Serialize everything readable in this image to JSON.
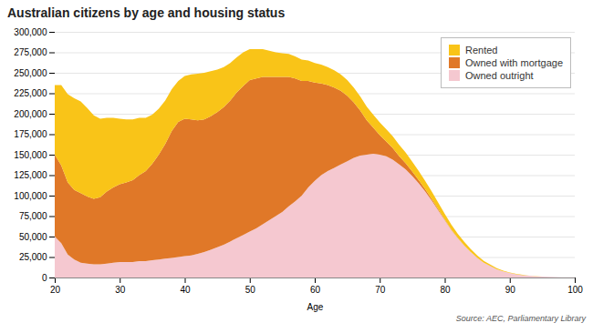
{
  "chart_data": {
    "type": "area",
    "stacked": true,
    "title": "Australian citizens by age and housing status",
    "xlabel": "Age",
    "annotations": [
      "Source: AEC, Parliamentary Library"
    ],
    "grid": true,
    "legend": "upper right",
    "xlim": [
      20,
      100
    ],
    "xticks": [
      20,
      30,
      40,
      50,
      60,
      70,
      80,
      90,
      100
    ],
    "ylim": [
      0,
      300000
    ],
    "yticks": [
      0,
      {
        "value": 25000,
        "label": "25,000"
      },
      {
        "value": 50000,
        "label": "50,000"
      },
      {
        "value": 75000,
        "label": "75,000"
      },
      {
        "value": 100000,
        "label": "100,000"
      },
      {
        "value": 125000,
        "label": "125,000"
      },
      {
        "value": 150000,
        "label": "150,000"
      },
      {
        "value": 175000,
        "label": "175,000"
      },
      {
        "value": 200000,
        "label": "200,000"
      },
      {
        "value": 225000,
        "label": "225,000"
      },
      {
        "value": 250000,
        "label": "250,000"
      },
      {
        "value": 275000,
        "label": "275,000"
      },
      {
        "value": 300000,
        "label": "300,000"
      }
    ],
    "x": [
      20,
      21,
      22,
      23,
      24,
      25,
      26,
      27,
      28,
      29,
      30,
      31,
      32,
      33,
      34,
      35,
      36,
      37,
      38,
      39,
      40,
      41,
      42,
      43,
      44,
      45,
      46,
      47,
      48,
      49,
      50,
      51,
      52,
      53,
      54,
      55,
      56,
      57,
      58,
      59,
      60,
      61,
      62,
      63,
      64,
      65,
      66,
      67,
      68,
      69,
      70,
      71,
      72,
      73,
      74,
      75,
      76,
      77,
      78,
      79,
      80,
      81,
      82,
      83,
      84,
      85,
      86,
      87,
      88,
      89,
      90,
      91,
      92,
      93,
      94,
      95,
      96,
      97,
      98,
      99,
      100
    ],
    "series": [
      {
        "name": "Owned outright",
        "color": "#F5C8D0",
        "values": [
          50000,
          42000,
          28000,
          22000,
          18000,
          17000,
          16000,
          16000,
          17000,
          18000,
          19000,
          19000,
          19000,
          20000,
          20000,
          21000,
          22000,
          23000,
          24000,
          25000,
          26000,
          27000,
          29000,
          31000,
          34000,
          37000,
          40000,
          44000,
          48000,
          52000,
          56000,
          60000,
          65000,
          70000,
          75000,
          80000,
          87000,
          93000,
          100000,
          110000,
          118000,
          125000,
          130000,
          134000,
          138000,
          142000,
          146000,
          149000,
          150000,
          151000,
          150000,
          148000,
          144000,
          138000,
          132000,
          124000,
          115000,
          105000,
          94000,
          82000,
          70000,
          58000,
          48000,
          39000,
          31000,
          24000,
          18000,
          14000,
          10000,
          7500,
          5500,
          4000,
          2900,
          2100,
          1500,
          1050,
          720,
          490,
          330,
          220,
          140
        ]
      },
      {
        "name": "Owned with mortgage",
        "color": "#E07828",
        "values": [
          100000,
          95000,
          88000,
          85000,
          85000,
          82000,
          80000,
          82000,
          88000,
          92000,
          95000,
          97000,
          100000,
          105000,
          110000,
          118000,
          128000,
          140000,
          155000,
          165000,
          168000,
          166000,
          163000,
          162000,
          163000,
          165000,
          168000,
          172000,
          178000,
          182000,
          185000,
          183000,
          180000,
          175000,
          170000,
          165000,
          158000,
          150000,
          140000,
          130000,
          120000,
          112000,
          105000,
          98000,
          90000,
          80000,
          68000,
          55000,
          42000,
          32000,
          24000,
          18000,
          14000,
          10000,
          7500,
          5500,
          4000,
          2800,
          1900,
          1300,
          900,
          620,
          420,
          280,
          185,
          120,
          78,
          50,
          32,
          20,
          13,
          8,
          5,
          3,
          2,
          1,
          1,
          0,
          0,
          0,
          0
        ]
      },
      {
        "name": "Rented",
        "color": "#F9C418",
        "values": [
          85000,
          98000,
          108000,
          112000,
          112000,
          108000,
          102000,
          96000,
          90000,
          85000,
          80000,
          77000,
          74000,
          70000,
          65000,
          60000,
          56000,
          53000,
          51000,
          50000,
          52000,
          55000,
          57000,
          57000,
          55000,
          52000,
          49000,
          46000,
          43000,
          41000,
          38000,
          36000,
          34000,
          32000,
          30000,
          29000,
          28000,
          27000,
          26000,
          25000,
          24000,
          23000,
          22000,
          21000,
          20000,
          19000,
          18000,
          17000,
          16500,
          16000,
          15500,
          15000,
          14500,
          14000,
          13000,
          12000,
          11000,
          10000,
          9000,
          8000,
          7000,
          6000,
          5000,
          4200,
          3500,
          2800,
          2200,
          1700,
          1300,
          950,
          680,
          480,
          340,
          235,
          160,
          108,
          72,
          47,
          30,
          19,
          12
        ]
      }
    ]
  }
}
